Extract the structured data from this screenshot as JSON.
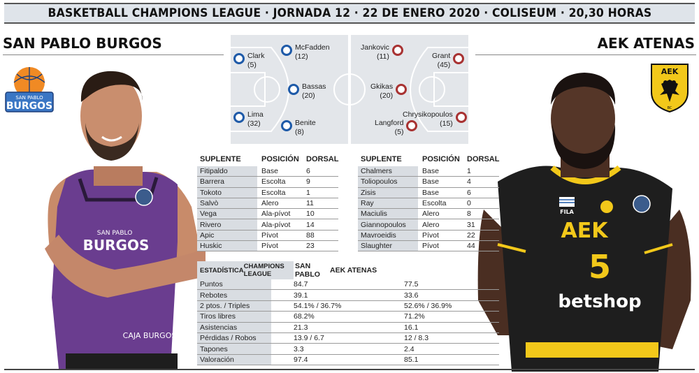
{
  "header": {
    "title": "BASKETBALL CHAMPIONS LEAGUE · JORNADA 12 · 22 DE ENERO 2020 · COLISEUM · 20,30 HORAS"
  },
  "home": {
    "name": "SAN PABLO BURGOS",
    "logo_text": {
      "top": "SAN PABLO",
      "main": "BURGOS"
    },
    "jersey_text": {
      "top": "SAN PABLO",
      "main": "BURGOS",
      "sponsor": "CAJA BURGOS"
    },
    "color": "#1e5aa8",
    "starters": [
      {
        "name": "Clark",
        "number": "(5)"
      },
      {
        "name": "McFadden",
        "number": "(12)"
      },
      {
        "name": "Bassas",
        "number": "(20)"
      },
      {
        "name": "Lima",
        "number": "(32)"
      },
      {
        "name": "Benite",
        "number": "(8)"
      }
    ],
    "bench": [
      {
        "name": "Fitipaldo",
        "position": "Base",
        "number": "6"
      },
      {
        "name": "Barrera",
        "position": "Escolta",
        "number": "9"
      },
      {
        "name": "Tokoto",
        "position": "Escolta",
        "number": "1"
      },
      {
        "name": "Salvò",
        "position": "Alero",
        "number": "11"
      },
      {
        "name": "Vega",
        "position": "Ala-pívot",
        "number": "10"
      },
      {
        "name": "Rivero",
        "position": "Ala-pívot",
        "number": "14"
      },
      {
        "name": "Apic",
        "position": "Pívot",
        "number": "88"
      },
      {
        "name": "Huskic",
        "position": "Pívot",
        "number": "23"
      }
    ]
  },
  "away": {
    "name": "AEK ATENAS",
    "logo_text": {
      "main": "ΑΕΚ",
      "sub": "BC"
    },
    "jersey_text": {
      "brand": "FILA",
      "main": "ΑΕΚ",
      "number": "5",
      "sponsor": "betshop"
    },
    "color": "#a83232",
    "starters": [
      {
        "name": "Jankovic",
        "number": "(11)"
      },
      {
        "name": "Grant",
        "number": "(45)"
      },
      {
        "name": "Gkikas",
        "number": "(20)"
      },
      {
        "name": "Chrysikopoulos",
        "number": "(15)"
      },
      {
        "name": "Langford",
        "number": "(5)"
      }
    ],
    "bench": [
      {
        "name": "Chalmers",
        "position": "Base",
        "number": "1"
      },
      {
        "name": "Toliopoulos",
        "position": "Base",
        "number": "4"
      },
      {
        "name": "Zisis",
        "position": "Base",
        "number": "6"
      },
      {
        "name": "Ray",
        "position": "Escolta",
        "number": "0"
      },
      {
        "name": "Maciulis",
        "position": "Alero",
        "number": "8"
      },
      {
        "name": "Giannopoulos",
        "position": "Alero",
        "number": "31"
      },
      {
        "name": "Mavroeidis",
        "position": "Pívot",
        "number": "22"
      },
      {
        "name": "Slaughter",
        "position": "Pívot",
        "number": "44"
      }
    ]
  },
  "bench_headers": {
    "name": "SUPLENTE",
    "position": "POSICIÓN",
    "number": "DORSAL"
  },
  "stats": {
    "header": {
      "label_line1": "ESTADÍSTICA",
      "label_line2": "CHAMPIONS LEAGUE",
      "home": "SAN PABLO",
      "away": "AEK ATENAS"
    },
    "rows": [
      {
        "label": "Puntos",
        "home": "84.7",
        "away": "77.5"
      },
      {
        "label": "Rebotes",
        "home": "39.1",
        "away": "33.6"
      },
      {
        "label": "2 ptos. / Triples",
        "home": "54.1% / 36.7%",
        "away": "52.6% / 36.9%"
      },
      {
        "label": "Tiros libres",
        "home": "68.2%",
        "away": "71.2%"
      },
      {
        "label": "Asistencias",
        "home": "21.3",
        "away": "16.1"
      },
      {
        "label": "Pérdidas / Robos",
        "home": "13.9 / 6.7",
        "away": "12 / 8.3"
      },
      {
        "label": "Tapones",
        "home": "3.3",
        "away": "2.4"
      },
      {
        "label": "Valoración",
        "home": "97.4",
        "away": "85.1"
      }
    ]
  }
}
